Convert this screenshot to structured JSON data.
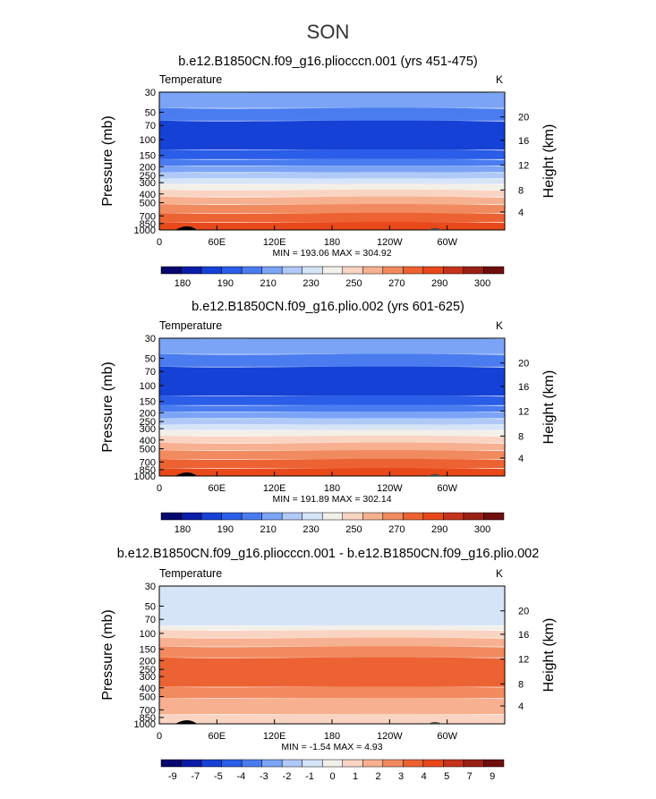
{
  "figure": {
    "title": "SON"
  },
  "chart_data": [
    {
      "type": "heatmap",
      "title": "b.e12.B1850CN.f09_g16.pliocccn.001 (yrs 451-475)",
      "left_label": "Temperature",
      "units": "K",
      "ylabel": "Pressure (mb)",
      "ylabel_right": "Height (km)",
      "xticks": [
        "0",
        "60E",
        "120E",
        "180",
        "120W",
        "60W"
      ],
      "yticks": [
        "30",
        "50",
        "70",
        "100",
        "150",
        "200",
        "250",
        "300",
        "400",
        "500",
        "700",
        "850",
        "1000"
      ],
      "yticks_right": [
        "20",
        "16",
        "12",
        "8",
        "4"
      ],
      "stats": "MIN = 193.06   MAX = 304.92",
      "colorbar_labels": [
        "180",
        "190",
        "210",
        "230",
        "250",
        "270",
        "290",
        "300"
      ],
      "colorbar_colors": [
        "#05066e",
        "#0b1ca8",
        "#1641d6",
        "#2a5de8",
        "#4a7cf0",
        "#7ba4f6",
        "#b0c9f7",
        "#d6e4f7",
        "#f3efe9",
        "#f9d4c2",
        "#f7b090",
        "#f28a60",
        "#ec6232",
        "#e8481a",
        "#c5331a",
        "#9a2016",
        "#6e0e0e"
      ],
      "fill": [
        {
          "color": "#7ba4f6",
          "p_top": "30",
          "p_bottom": "45"
        },
        {
          "color": "#4a7cf0",
          "p_top": "45",
          "p_bottom": "62"
        },
        {
          "color": "#1641d6",
          "p_top": "62",
          "p_bottom": "130"
        },
        {
          "color": "#2a5de8",
          "p_top": "130",
          "p_bottom": "165"
        },
        {
          "color": "#4a7cf0",
          "p_top": "165",
          "p_bottom": "195"
        },
        {
          "color": "#7ba4f6",
          "p_top": "195",
          "p_bottom": "230"
        },
        {
          "color": "#b0c9f7",
          "p_top": "230",
          "p_bottom": "270"
        },
        {
          "color": "#d6e4f7",
          "p_top": "270",
          "p_bottom": "310"
        },
        {
          "color": "#f3efe9",
          "p_top": "310",
          "p_bottom": "360"
        },
        {
          "color": "#f9d4c2",
          "p_top": "360",
          "p_bottom": "430"
        },
        {
          "color": "#f7b090",
          "p_top": "430",
          "p_bottom": "520"
        },
        {
          "color": "#f28a60",
          "p_top": "520",
          "p_bottom": "650"
        },
        {
          "color": "#ec6232",
          "p_top": "650",
          "p_bottom": "820"
        },
        {
          "color": "#e8481a",
          "p_top": "820",
          "p_bottom": "1000"
        }
      ]
    },
    {
      "type": "heatmap",
      "title": "b.e12.B1850CN.f09_g16.plio.002 (yrs 601-625)",
      "left_label": "Temperature",
      "units": "K",
      "ylabel": "Pressure (mb)",
      "ylabel_right": "Height (km)",
      "xticks": [
        "0",
        "60E",
        "120E",
        "180",
        "120W",
        "60W"
      ],
      "yticks": [
        "30",
        "50",
        "70",
        "100",
        "150",
        "200",
        "250",
        "300",
        "400",
        "500",
        "700",
        "850",
        "1000"
      ],
      "yticks_right": [
        "20",
        "16",
        "12",
        "8",
        "4"
      ],
      "stats": "MIN = 191.89   MAX = 302.14",
      "colorbar_labels": [
        "180",
        "190",
        "210",
        "230",
        "250",
        "270",
        "290",
        "300"
      ],
      "colorbar_colors": [
        "#05066e",
        "#0b1ca8",
        "#1641d6",
        "#2a5de8",
        "#4a7cf0",
        "#7ba4f6",
        "#b0c9f7",
        "#d6e4f7",
        "#f3efe9",
        "#f9d4c2",
        "#f7b090",
        "#f28a60",
        "#ec6232",
        "#e8481a",
        "#c5331a",
        "#9a2016",
        "#6e0e0e"
      ],
      "fill": [
        {
          "color": "#7ba4f6",
          "p_top": "30",
          "p_bottom": "45"
        },
        {
          "color": "#4a7cf0",
          "p_top": "45",
          "p_bottom": "62"
        },
        {
          "color": "#1641d6",
          "p_top": "62",
          "p_bottom": "130"
        },
        {
          "color": "#2a5de8",
          "p_top": "130",
          "p_bottom": "165"
        },
        {
          "color": "#4a7cf0",
          "p_top": "165",
          "p_bottom": "195"
        },
        {
          "color": "#7ba4f6",
          "p_top": "195",
          "p_bottom": "230"
        },
        {
          "color": "#b0c9f7",
          "p_top": "230",
          "p_bottom": "270"
        },
        {
          "color": "#d6e4f7",
          "p_top": "270",
          "p_bottom": "310"
        },
        {
          "color": "#f3efe9",
          "p_top": "310",
          "p_bottom": "360"
        },
        {
          "color": "#f9d4c2",
          "p_top": "360",
          "p_bottom": "430"
        },
        {
          "color": "#f7b090",
          "p_top": "430",
          "p_bottom": "520"
        },
        {
          "color": "#f28a60",
          "p_top": "520",
          "p_bottom": "650"
        },
        {
          "color": "#ec6232",
          "p_top": "650",
          "p_bottom": "820"
        },
        {
          "color": "#e8481a",
          "p_top": "820",
          "p_bottom": "1000"
        }
      ]
    },
    {
      "type": "heatmap",
      "title": "b.e12.B1850CN.f09_g16.pliocccn.001 - b.e12.B1850CN.f09_g16.plio.002",
      "left_label": "Temperature",
      "units": "K",
      "ylabel": "Pressure (mb)",
      "ylabel_right": "Height (km)",
      "xticks": [
        "0",
        "60E",
        "120E",
        "180",
        "120W",
        "60W"
      ],
      "yticks": [
        "30",
        "50",
        "70",
        "100",
        "150",
        "200",
        "250",
        "300",
        "400",
        "500",
        "700",
        "850",
        "1000"
      ],
      "yticks_right": [
        "20",
        "16",
        "12",
        "8",
        "4"
      ],
      "stats": "MIN =  -1.54   MAX =    4.93",
      "colorbar_labels": [
        "-9",
        "-7",
        "-5",
        "-4",
        "-3",
        "-2",
        "-1",
        "0",
        "1",
        "2",
        "3",
        "4",
        "5",
        "7",
        "9"
      ],
      "colorbar_colors": [
        "#05066e",
        "#0b1ca8",
        "#1641d6",
        "#2a5de8",
        "#4a7cf0",
        "#7ba4f6",
        "#b0c9f7",
        "#d6e4f7",
        "#f3efe9",
        "#f9d4c2",
        "#f7b090",
        "#f28a60",
        "#ec6232",
        "#e8481a",
        "#c5331a",
        "#9a2016",
        "#6e0e0e"
      ],
      "fill": [
        {
          "color": "#d6e4f7",
          "p_top": "30",
          "p_bottom": "82"
        },
        {
          "color": "#f3efe9",
          "p_top": "82",
          "p_bottom": "92"
        },
        {
          "color": "#f9d4c2",
          "p_top": "92",
          "p_bottom": "112"
        },
        {
          "color": "#f7b090",
          "p_top": "112",
          "p_bottom": "140"
        },
        {
          "color": "#f28a60",
          "p_top": "140",
          "p_bottom": "185"
        },
        {
          "color": "#ec6232",
          "p_top": "185",
          "p_bottom": "390"
        },
        {
          "color": "#f28a60",
          "p_top": "390",
          "p_bottom": "520"
        },
        {
          "color": "#f7b090",
          "p_top": "520",
          "p_bottom": "780"
        },
        {
          "color": "#f9d4c2",
          "p_top": "780",
          "p_bottom": "1000"
        }
      ]
    }
  ]
}
